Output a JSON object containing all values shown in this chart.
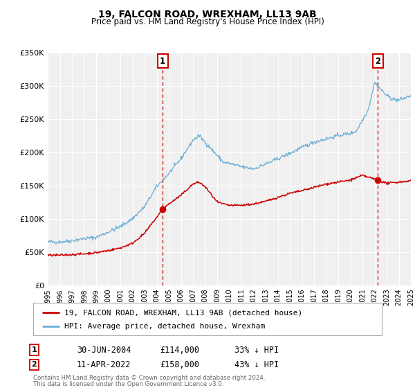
{
  "title": "19, FALCON ROAD, WREXHAM, LL13 9AB",
  "subtitle": "Price paid vs. HM Land Registry's House Price Index (HPI)",
  "legend_line1": "19, FALCON ROAD, WREXHAM, LL13 9AB (detached house)",
  "legend_line2": "HPI: Average price, detached house, Wrexham",
  "annotation1_label": "1",
  "annotation1_date": "30-JUN-2004",
  "annotation1_price": "£114,000",
  "annotation1_hpi": "33% ↓ HPI",
  "annotation2_label": "2",
  "annotation2_date": "11-APR-2022",
  "annotation2_price": "£158,000",
  "annotation2_hpi": "43% ↓ HPI",
  "footer1": "Contains HM Land Registry data © Crown copyright and database right 2024.",
  "footer2": "This data is licensed under the Open Government Licence v3.0.",
  "hpi_color": "#6baed6",
  "sale_color": "#cc0000",
  "vline_color": "#cc0000",
  "marker_num_color": "#cc0000",
  "ylim": [
    0,
    350000
  ],
  "yticks": [
    0,
    50000,
    100000,
    150000,
    200000,
    250000,
    300000,
    350000
  ],
  "ytick_labels": [
    "£0",
    "£50K",
    "£100K",
    "£150K",
    "£200K",
    "£250K",
    "£300K",
    "£350K"
  ],
  "plot_bg_color": "#f0f0f0",
  "grid_color": "#ffffff",
  "marker1_x": 2004.5,
  "marker1_y": 114000,
  "marker2_x": 2022.27,
  "marker2_y": 158000,
  "xlim_left": 1995,
  "xlim_right": 2025
}
